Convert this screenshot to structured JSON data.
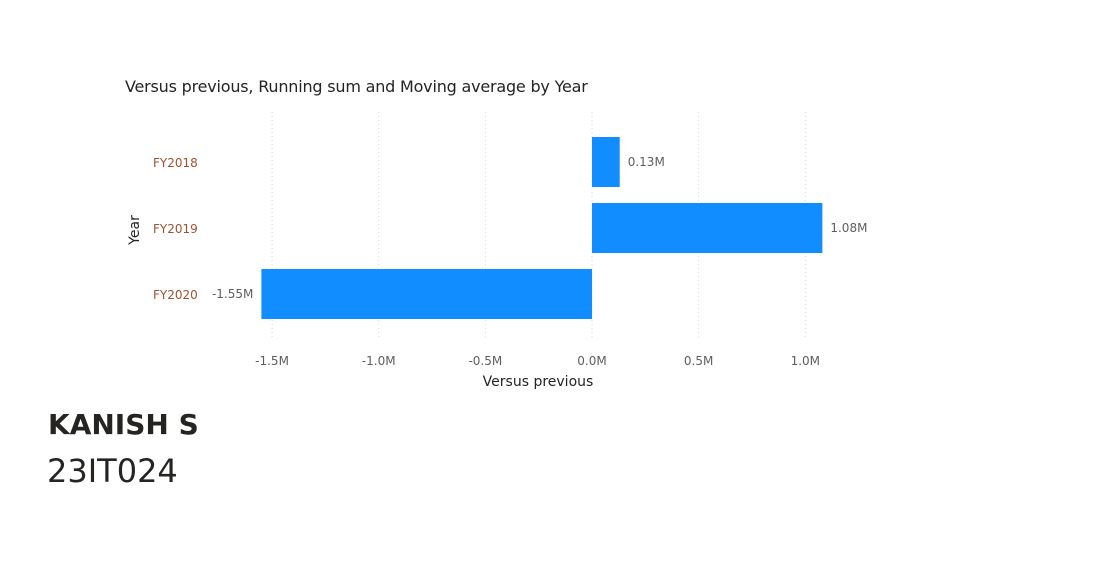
{
  "chart_data": {
    "type": "bar",
    "orientation": "horizontal",
    "title": "Versus previous, Running sum and Moving average by Year",
    "xlabel": "Versus previous",
    "ylabel": "Year",
    "categories": [
      "FY2018",
      "FY2019",
      "FY2020"
    ],
    "values": [
      0.13,
      1.08,
      -1.55
    ],
    "value_unit": "M",
    "data_labels": [
      "0.13M",
      "1.08M",
      "-1.55M"
    ],
    "xlim": [
      -1.6,
      1.0
    ],
    "xticks": [
      -1.5,
      -1.0,
      -0.5,
      0.0,
      0.5,
      1.0
    ],
    "xtick_labels": [
      "-1.5M",
      "-1.0M",
      "-0.5M",
      "0.0M",
      "0.5M",
      "1.0M"
    ],
    "grid": true,
    "bar_color": "#118DFF",
    "category_label_color": "#a0522d"
  },
  "author": {
    "name": "KANISH S",
    "id": "23IT024"
  }
}
